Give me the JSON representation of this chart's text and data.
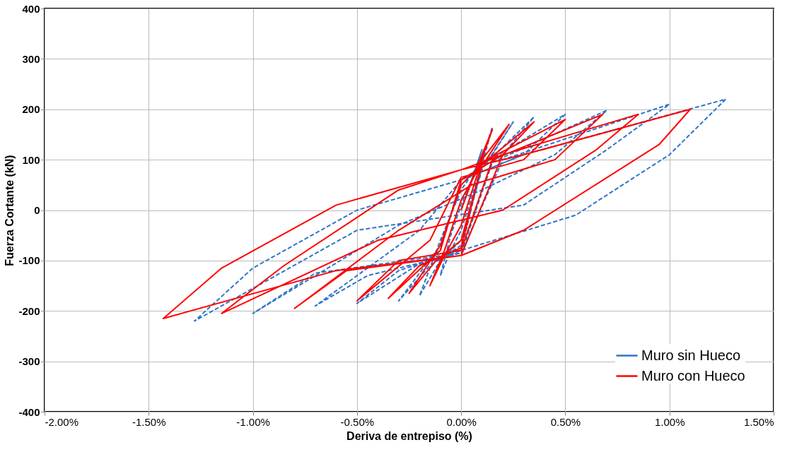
{
  "chart_data": {
    "type": "line",
    "xlabel": "Deriva de entrepiso  (%)",
    "ylabel": "Fuerza Cortante (kN)",
    "xlim": [
      -2,
      1.5
    ],
    "xticks": [
      {
        "value": -2,
        "label": "-2.00%"
      },
      {
        "value": -1.5,
        "label": "-1.50%"
      },
      {
        "value": -1,
        "label": "-1.00%"
      },
      {
        "value": -0.5,
        "label": "-0.50%"
      },
      {
        "value": 0,
        "label": "0.00%"
      },
      {
        "value": 0.5,
        "label": "0.50%"
      },
      {
        "value": 1,
        "label": "1.00%"
      },
      {
        "value": 1.5,
        "label": "1.50%"
      }
    ],
    "ylim": [
      -400,
      400
    ],
    "yticks": [
      -400,
      -300,
      -200,
      -100,
      0,
      100,
      200,
      300,
      400
    ],
    "grid": true,
    "legend": "bottom right",
    "marker": "none",
    "series": [
      {
        "name": "Muro sin Hueco",
        "color": "#2e75c6",
        "line_style": "dashed",
        "x": [
          0,
          0.05,
          0.1,
          0.05,
          0,
          -0.05,
          -0.1,
          -0.05,
          0,
          0.1,
          0.15,
          0.1,
          0,
          -0.1,
          -0.2,
          -0.1,
          0,
          0.1,
          0.25,
          0.15,
          0,
          -0.1,
          -0.3,
          -0.15,
          0,
          0.1,
          0.35,
          0.2,
          0,
          -0.1,
          -0.5,
          -0.3,
          0,
          0.1,
          0.5,
          0.3,
          0,
          -0.2,
          -0.7,
          -0.45,
          0,
          0.15,
          0.7,
          0.45,
          0.1,
          -0.3,
          -1.0,
          -0.7,
          0,
          0.2,
          1.0,
          0.7,
          0.3,
          -0.5,
          -1.28,
          -1.0,
          -0.5,
          0,
          0.3,
          1.27,
          1.0,
          0.55,
          0,
          -0.2
        ],
        "values": [
          0,
          60,
          120,
          60,
          10,
          -50,
          -130,
          -80,
          -40,
          90,
          165,
          100,
          40,
          -60,
          -170,
          -100,
          -60,
          80,
          175,
          110,
          50,
          -70,
          -180,
          -110,
          -70,
          85,
          185,
          110,
          60,
          -80,
          -185,
          -120,
          -80,
          90,
          190,
          110,
          60,
          -40,
          -190,
          -130,
          -85,
          95,
          198,
          110,
          40,
          -30,
          -205,
          -125,
          -85,
          100,
          210,
          120,
          10,
          -40,
          -220,
          -115,
          0,
          60,
          110,
          220,
          110,
          -10,
          -80,
          -110
        ]
      },
      {
        "name": "Muro con Hueco",
        "color": "#ff0000",
        "line_style": "solid",
        "x": [
          0,
          0.08,
          0.15,
          0.08,
          0,
          -0.08,
          -0.15,
          -0.08,
          0,
          0.1,
          0.23,
          0.12,
          0,
          -0.1,
          -0.25,
          -0.12,
          0,
          0.1,
          0.35,
          0.2,
          0,
          -0.1,
          -0.35,
          -0.2,
          0,
          0.1,
          0.5,
          0.3,
          0,
          -0.15,
          -0.5,
          -0.3,
          0,
          0.15,
          0.68,
          0.45,
          0.05,
          -0.3,
          -0.8,
          -0.55,
          0,
          0.2,
          0.85,
          0.65,
          0.2,
          -0.4,
          -1.15,
          -0.85,
          -0.3,
          0,
          0.3,
          1.1,
          0.95,
          0.3,
          0,
          -0.6,
          -1.43,
          -1.15,
          -0.6,
          0,
          0.2
        ],
        "values": [
          0,
          90,
          160,
          80,
          20,
          -80,
          -150,
          -90,
          -30,
          100,
          170,
          100,
          50,
          -70,
          -165,
          -100,
          -60,
          90,
          175,
          110,
          60,
          -80,
          -175,
          -110,
          -75,
          95,
          180,
          100,
          65,
          -60,
          -180,
          -100,
          -80,
          100,
          190,
          100,
          50,
          -40,
          -195,
          -120,
          -90,
          110,
          190,
          120,
          0,
          -60,
          -205,
          -110,
          40,
          80,
          110,
          200,
          130,
          -40,
          -90,
          -120,
          -215,
          -115,
          10,
          80,
          110
        ]
      }
    ]
  }
}
